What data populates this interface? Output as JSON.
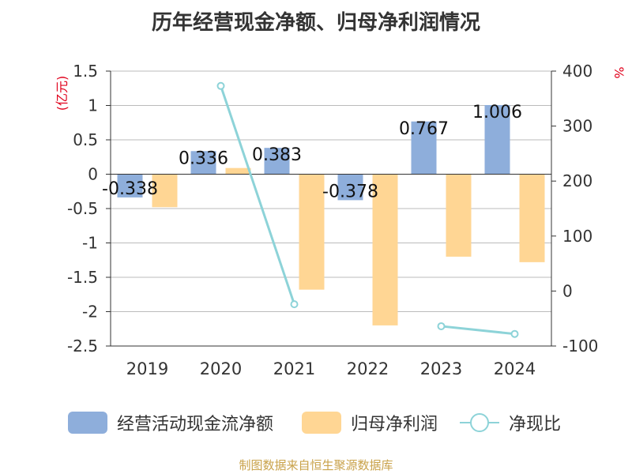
{
  "title": "历年经营现金净额、归母净利润情况",
  "source": "制图数据来自恒生聚源数据库",
  "colors": {
    "cash": "#8eaedb",
    "profit": "#ffd694",
    "ratio": "#8dd3d8",
    "left_unit": "#e0001b",
    "right_unit": "#e0001b",
    "grid": "#bbbbbb",
    "axis": "#333333"
  },
  "chart_data": {
    "type": "bar",
    "categories": [
      "2019",
      "2020",
      "2021",
      "2022",
      "2023",
      "2024"
    ],
    "left_axis": {
      "unit": "(亿元)",
      "ylim": [
        -2.5,
        1.5
      ],
      "ticks": [
        "1.5",
        "1",
        "0.5",
        "0",
        "-0.5",
        "-1",
        "-1.5",
        "-2",
        "-2.5"
      ],
      "tick_values": [
        1.5,
        1,
        0.5,
        0,
        -0.5,
        -1,
        -1.5,
        -2,
        -2.5
      ]
    },
    "right_axis": {
      "unit": "%",
      "ylim": [
        -100,
        400
      ],
      "ticks": [
        "400",
        "300",
        "200",
        "100",
        "0",
        "-100"
      ],
      "tick_values": [
        400,
        300,
        200,
        100,
        0,
        -100
      ]
    },
    "series": [
      {
        "name": "经营活动现金流净额",
        "type": "bar",
        "axis": "left",
        "values": [
          -0.338,
          0.336,
          0.383,
          -0.378,
          0.767,
          1.006
        ],
        "labels": [
          "-0.338",
          "0.336",
          "0.383",
          "-0.378",
          "0.767",
          "1.006"
        ]
      },
      {
        "name": "归母净利润",
        "type": "bar",
        "axis": "left",
        "values": [
          -0.48,
          0.09,
          -1.68,
          -2.2,
          -1.2,
          -1.28
        ]
      },
      {
        "name": "净现比",
        "type": "line",
        "axis": "right",
        "values": [
          null,
          373,
          -24,
          null,
          -64,
          -78
        ]
      }
    ],
    "legend_position": "bottom",
    "grid": true
  }
}
